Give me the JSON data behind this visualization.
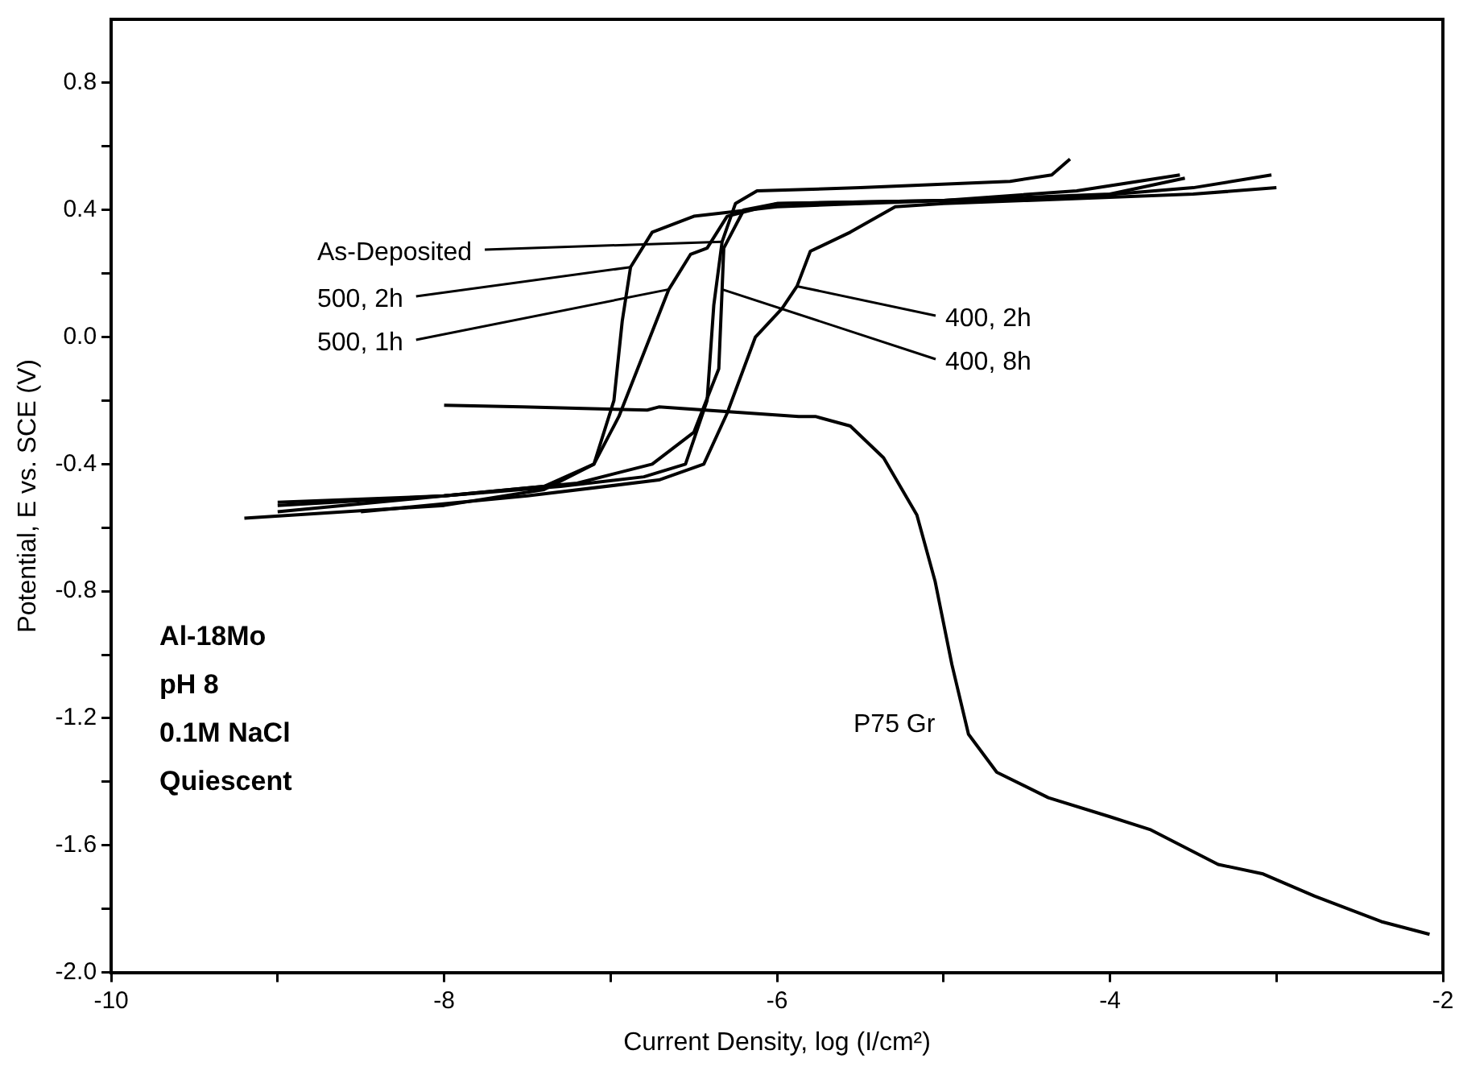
{
  "chart_data": {
    "type": "line",
    "xlabel": "Current Density, log (I/cm²)",
    "ylabel": "Potential, E vs. SCE (V)",
    "xlim": [
      -10,
      -2
    ],
    "xticks": [
      -10,
      {
        "value": -9,
        "label": null
      },
      -8,
      {
        "value": -7,
        "label": null
      },
      -6,
      {
        "value": -5,
        "label": null
      },
      -4,
      {
        "value": -3,
        "label": null
      },
      -2
    ],
    "ylim": [
      -2.0,
      1.0
    ],
    "yticks": [
      {
        "value": -2.0,
        "label": "-2.0"
      },
      {
        "value": -1.8,
        "label": null
      },
      -1.6,
      {
        "value": -1.4,
        "label": null
      },
      -1.2,
      {
        "value": -1.0,
        "label": null
      },
      -0.8,
      {
        "value": -0.6,
        "label": null
      },
      -0.4,
      {
        "value": -0.2,
        "label": null
      },
      {
        "value": 0,
        "label": "0.0"
      },
      {
        "value": 0.2,
        "label": null
      },
      0.4,
      {
        "value": 0.6,
        "label": null
      },
      0.8
    ],
    "grid": false,
    "legend": false,
    "marker": "none",
    "line_style": "solid",
    "series": [
      {
        "color": "#000000",
        "x": [
          -9.0,
          -8.0,
          -7.3,
          -6.8,
          -6.55,
          -6.42,
          -6.38,
          -6.33,
          -6.25,
          -6.12,
          -5.5,
          -4.6,
          -4.35,
          -4.24
        ],
        "values": [
          -0.55,
          -0.5,
          -0.47,
          -0.44,
          -0.4,
          -0.2,
          0.1,
          0.3,
          0.42,
          0.46,
          0.47,
          0.49,
          0.51,
          0.56
        ]
      },
      {
        "color": "#000000",
        "x": [
          -9.2,
          -8.0,
          -7.4,
          -7.1,
          -6.98,
          -6.93,
          -6.88,
          -6.75,
          -6.5,
          -6.0,
          -5.0,
          -4.2,
          -3.58
        ],
        "values": [
          -0.57,
          -0.53,
          -0.48,
          -0.4,
          -0.2,
          0.05,
          0.22,
          0.33,
          0.38,
          0.41,
          0.43,
          0.46,
          0.51
        ]
      },
      {
        "color": "#000000",
        "x": [
          -9.0,
          -8.0,
          -7.4,
          -7.1,
          -6.95,
          -6.8,
          -6.65,
          -6.52,
          -6.42,
          -6.3,
          -6.0,
          -5.0,
          -4.2,
          -3.5,
          -3.03
        ],
        "values": [
          -0.52,
          -0.5,
          -0.47,
          -0.4,
          -0.25,
          -0.05,
          0.15,
          0.26,
          0.28,
          0.38,
          0.42,
          0.43,
          0.44,
          0.47,
          0.51
        ]
      },
      {
        "color": "#000000",
        "x": [
          -9.0,
          -8.0,
          -7.2,
          -6.75,
          -6.5,
          -6.35,
          -6.33,
          -6.32,
          -6.2,
          -6.0,
          -5.0,
          -4.0,
          -3.55
        ],
        "values": [
          -0.53,
          -0.5,
          -0.46,
          -0.4,
          -0.3,
          -0.1,
          0.15,
          0.28,
          0.4,
          0.42,
          0.43,
          0.45,
          0.5
        ]
      },
      {
        "color": "#000000",
        "x": [
          -8.5,
          -7.5,
          -6.71,
          -6.44,
          -6.3,
          -6.13,
          -5.97,
          -5.88,
          -5.8,
          -5.56,
          -5.29,
          -5.0,
          -4.5,
          -4.0,
          -3.5,
          -3.0
        ],
        "values": [
          -0.55,
          -0.5,
          -0.45,
          -0.4,
          -0.24,
          0.0,
          0.09,
          0.16,
          0.27,
          0.33,
          0.41,
          0.42,
          0.43,
          0.44,
          0.45,
          0.47
        ]
      },
      {
        "color": "#000000",
        "x": [
          -8.0,
          -7.53,
          -6.78,
          -6.71,
          -5.87,
          -5.77,
          -5.56,
          -5.36,
          -5.16,
          -5.05,
          -4.95,
          -4.85,
          -4.68,
          -4.37,
          -4.0,
          -3.76,
          -3.35,
          -3.08,
          -2.77,
          -2.37,
          -2.08
        ],
        "values": [
          -0.215,
          -0.22,
          -0.23,
          -0.22,
          -0.25,
          -0.25,
          -0.28,
          -0.38,
          -0.56,
          -0.77,
          -1.03,
          -1.25,
          -1.37,
          -1.45,
          -1.51,
          -1.55,
          -1.66,
          -1.69,
          -1.76,
          -1.84,
          -1.88
        ]
      }
    ],
    "annotations": [
      {
        "text": "As-Deposited",
        "x": -6.33,
        "y": 0.3
      },
      {
        "text": "500, 2h",
        "x": -6.88,
        "y": 0.22
      },
      {
        "text": "500, 1h",
        "x": -6.65,
        "y": 0.15
      },
      {
        "text": "400, 8h",
        "x": -6.33,
        "y": 0.15
      },
      {
        "text": "400, 2h",
        "x": -5.88,
        "y": 0.16
      },
      "P75 Gr",
      "Al-18Mo",
      "pH 8",
      "0.1M NaCl",
      "Quiescent"
    ]
  }
}
